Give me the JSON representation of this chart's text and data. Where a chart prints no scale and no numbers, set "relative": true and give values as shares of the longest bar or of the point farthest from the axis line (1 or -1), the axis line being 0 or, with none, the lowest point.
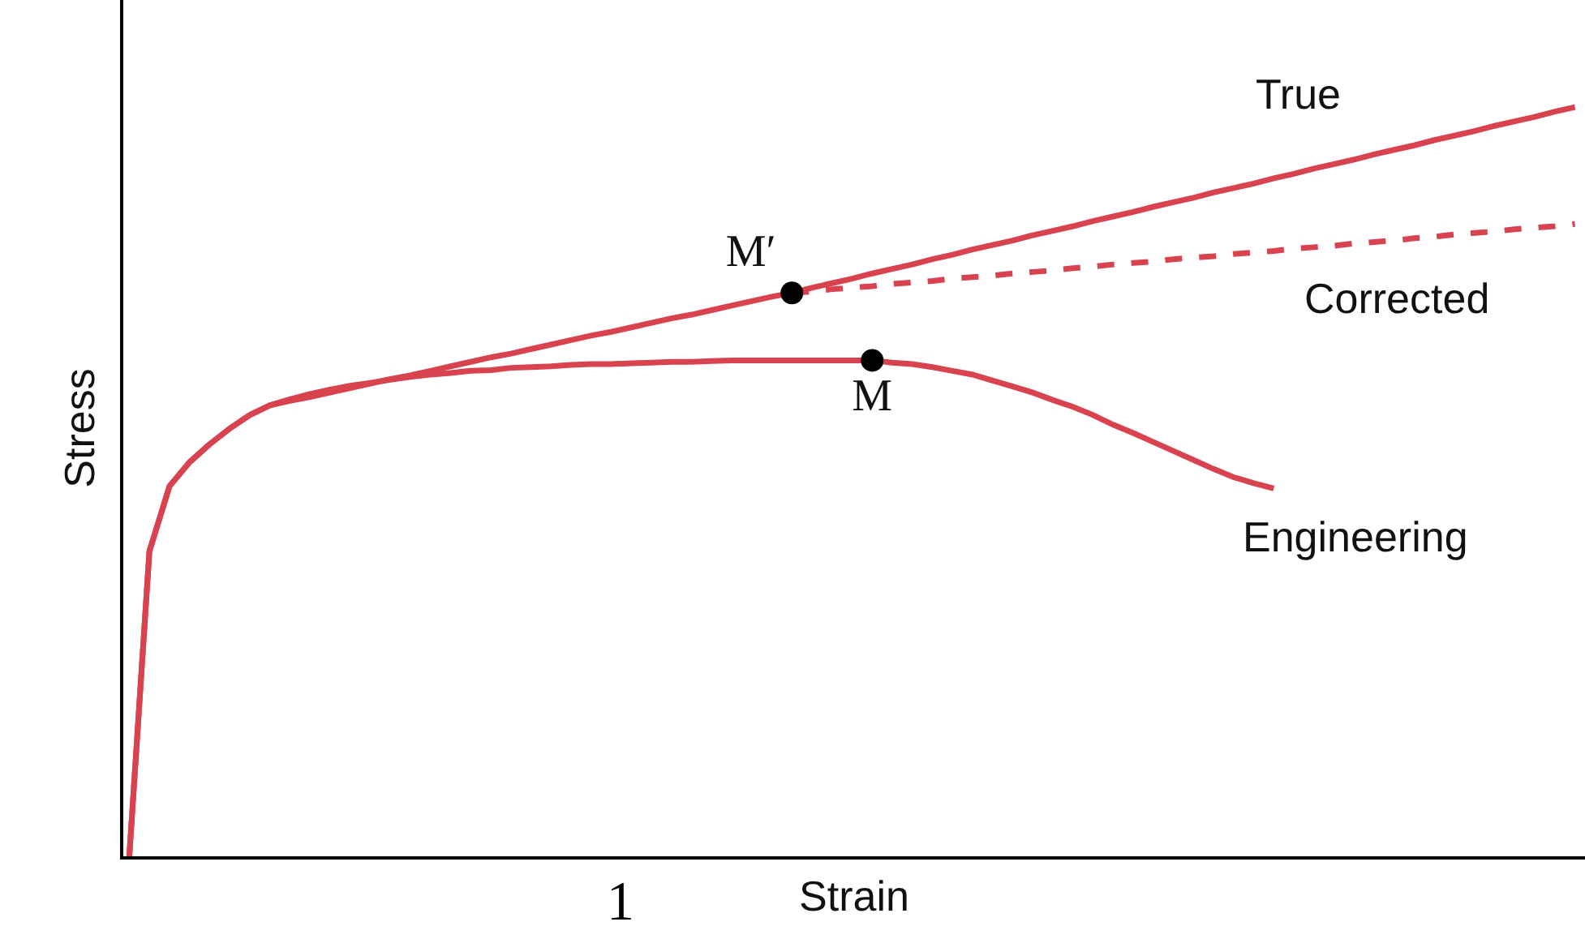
{
  "chart_data": {
    "type": "line",
    "relative": true,
    "xlabel": "Strain",
    "ylabel": "Stress",
    "grid": false,
    "marker": "none",
    "annotations": [
      "1"
    ],
    "categories": [
      null,
      null,
      null,
      null,
      null,
      null,
      null,
      null,
      null,
      null,
      null,
      null,
      null,
      null,
      null,
      null,
      null,
      null,
      null,
      null,
      null,
      null,
      null,
      null,
      null,
      null,
      null,
      null,
      null,
      null,
      null,
      null,
      null,
      null,
      null,
      null,
      null,
      null,
      null,
      null,
      null,
      null,
      null,
      null,
      null,
      null,
      null,
      null,
      null,
      null,
      null,
      null,
      null,
      null,
      null,
      null,
      null,
      null,
      null,
      null,
      null,
      null,
      null,
      null,
      null,
      null,
      null,
      null,
      null,
      null,
      null,
      null,
      null
    ],
    "series": [
      {
        "name": "True",
        "color": "#d9434f",
        "line_style": "solid",
        "values": [
          0,
          0.407,
          0.494,
          0.526,
          0.55,
          0.571,
          0.589,
          0.602,
          0.608,
          0.613,
          0.619,
          0.625,
          0.631,
          0.637,
          0.642,
          0.648,
          0.654,
          0.66,
          0.666,
          0.671,
          0.677,
          0.683,
          0.689,
          0.695,
          0.7,
          0.706,
          0.712,
          0.718,
          0.723,
          0.729,
          0.735,
          0.741,
          0.747,
          0.752,
          0.759,
          0.765,
          0.771,
          0.778,
          0.784,
          0.79,
          0.797,
          0.803,
          0.81,
          0.816,
          0.822,
          0.829,
          0.835,
          0.841,
          0.848,
          0.854,
          0.86,
          0.867,
          0.873,
          0.879,
          0.886,
          0.892,
          0.898,
          0.905,
          0.911,
          0.918,
          0.924,
          0.93,
          0.937,
          0.943,
          0.949,
          0.956,
          0.962,
          0.968,
          0.975,
          0.981,
          0.987,
          0.994,
          1.0
        ]
      },
      {
        "name": "Corrected",
        "color": "#d9434f",
        "line_style": "dashed",
        "values": [
          null,
          null,
          null,
          null,
          null,
          null,
          null,
          null,
          null,
          null,
          null,
          null,
          null,
          null,
          null,
          null,
          null,
          null,
          null,
          null,
          null,
          null,
          null,
          null,
          null,
          null,
          null,
          null,
          null,
          null,
          null,
          null,
          null,
          0.752,
          0.754,
          0.757,
          0.759,
          0.761,
          0.764,
          0.766,
          0.768,
          0.771,
          0.773,
          0.775,
          0.778,
          0.78,
          0.782,
          0.785,
          0.787,
          0.79,
          0.792,
          0.794,
          0.797,
          0.799,
          0.801,
          0.804,
          0.806,
          0.808,
          0.811,
          0.813,
          0.815,
          0.818,
          0.82,
          0.822,
          0.825,
          0.827,
          0.83,
          0.832,
          0.834,
          0.837,
          0.839,
          0.841,
          0.844
        ]
      },
      {
        "name": "Engineering",
        "color": "#d9434f",
        "line_style": "solid",
        "values": [
          0,
          0.407,
          0.494,
          0.526,
          0.55,
          0.571,
          0.589,
          0.602,
          0.61,
          0.617,
          0.623,
          0.628,
          0.632,
          0.636,
          0.64,
          0.643,
          0.645,
          0.648,
          0.649,
          0.652,
          0.653,
          0.654,
          0.656,
          0.657,
          0.657,
          0.658,
          0.659,
          0.66,
          0.66,
          0.661,
          0.662,
          0.662,
          0.662,
          0.662,
          0.662,
          0.662,
          0.662,
          0.662,
          0.659,
          0.657,
          0.653,
          0.648,
          0.643,
          0.635,
          0.627,
          0.619,
          0.609,
          0.6,
          0.589,
          0.576,
          0.565,
          0.553,
          0.541,
          0.529,
          0.517,
          0.506,
          0.498,
          0.491,
          null,
          null,
          null,
          null,
          null,
          null,
          null,
          null,
          null,
          null,
          null,
          null,
          null,
          null,
          null
        ]
      },
      {
        "name": "M′",
        "marker": "circle",
        "color": "#000000",
        "values": [
          null,
          null,
          null,
          null,
          null,
          null,
          null,
          null,
          null,
          null,
          null,
          null,
          null,
          null,
          null,
          null,
          null,
          null,
          null,
          null,
          null,
          null,
          null,
          null,
          null,
          null,
          null,
          null,
          null,
          null,
          null,
          null,
          null,
          0.752,
          null,
          null,
          null,
          null,
          null,
          null,
          null,
          null,
          null,
          null,
          null,
          null,
          null,
          null,
          null,
          null,
          null,
          null,
          null,
          null,
          null,
          null,
          null,
          null,
          null,
          null,
          null,
          null,
          null,
          null,
          null,
          null,
          null,
          null,
          null,
          null,
          null,
          null,
          null
        ]
      },
      {
        "name": "M",
        "marker": "circle",
        "color": "#000000",
        "values": [
          null,
          null,
          null,
          null,
          null,
          null,
          null,
          null,
          null,
          null,
          null,
          null,
          null,
          null,
          null,
          null,
          null,
          null,
          null,
          null,
          null,
          null,
          null,
          null,
          null,
          null,
          null,
          null,
          null,
          null,
          null,
          null,
          null,
          null,
          null,
          null,
          null,
          0.662,
          null,
          null,
          null,
          null,
          null,
          null,
          null,
          null,
          null,
          null,
          null,
          null,
          null,
          null,
          null,
          null,
          null,
          null,
          null,
          null,
          null,
          null,
          null,
          null,
          null,
          null,
          null,
          null,
          null,
          null,
          null,
          null,
          null,
          null,
          null
        ]
      }
    ]
  }
}
